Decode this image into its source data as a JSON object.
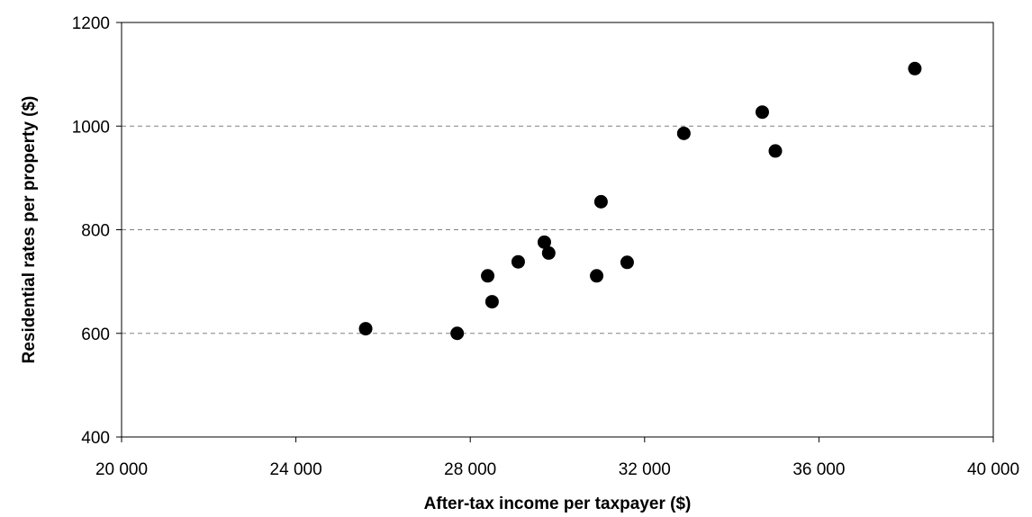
{
  "chart_data": {
    "type": "scatter",
    "xlabel": "After-tax income per taxpayer ($)",
    "ylabel": "Residential rates per property ($)",
    "xlim": [
      20000,
      40000
    ],
    "ylim": [
      400,
      1200
    ],
    "x_ticks": [
      20000,
      24000,
      28000,
      32000,
      36000,
      40000
    ],
    "x_tick_labels": [
      "20 000",
      "24 000",
      "28 000",
      "32 000",
      "36 000",
      "40 000"
    ],
    "y_ticks": [
      400,
      600,
      800,
      1000,
      1200
    ],
    "y_tick_labels": [
      "400",
      "600",
      "800",
      "1000",
      "1200"
    ],
    "gridlines": "horizontal dashed at 600, 800, 1000",
    "legend": "none",
    "colors": {
      "marker": "#000000",
      "grid": "#808080",
      "axis": "#000000"
    },
    "points": [
      {
        "x": 25600,
        "y": 609
      },
      {
        "x": 27700,
        "y": 600
      },
      {
        "x": 28400,
        "y": 711
      },
      {
        "x": 28500,
        "y": 661
      },
      {
        "x": 29100,
        "y": 738
      },
      {
        "x": 29700,
        "y": 776
      },
      {
        "x": 29800,
        "y": 755
      },
      {
        "x": 30900,
        "y": 711
      },
      {
        "x": 31000,
        "y": 854
      },
      {
        "x": 31600,
        "y": 737
      },
      {
        "x": 32900,
        "y": 986
      },
      {
        "x": 34700,
        "y": 1027
      },
      {
        "x": 35000,
        "y": 952
      },
      {
        "x": 38200,
        "y": 1111
      }
    ]
  }
}
